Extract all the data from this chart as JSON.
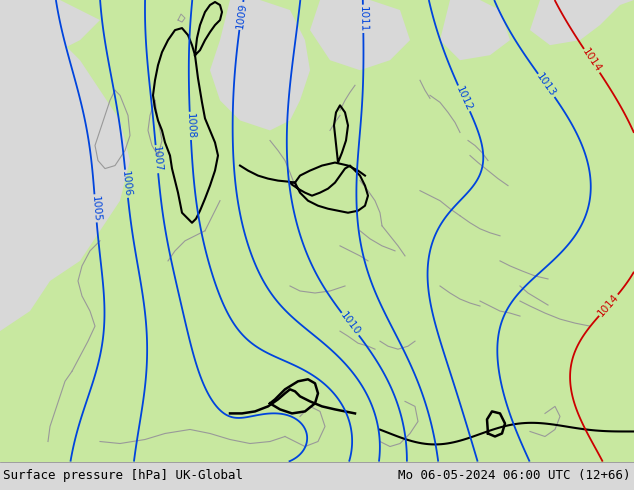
{
  "title_left": "Surface pressure [hPa] UK-Global",
  "title_right": "Mo 06-05-2024 06:00 UTC (12+66)",
  "bg_sea_color": "#d8d8d8",
  "bg_land_light": "#c8e8a0",
  "bg_land_medium": "#b8dc88",
  "contour_blue": "#0044dd",
  "contour_red": "#cc0000",
  "contour_black": "#000000",
  "border_black": "#000000",
  "border_gray": "#999999",
  "text_color": "#000000",
  "footer_fontsize": 9,
  "figsize": [
    6.34,
    4.9
  ],
  "dpi": 100
}
